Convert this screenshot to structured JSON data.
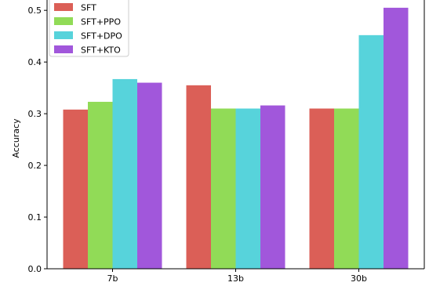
{
  "chart_data": {
    "type": "bar",
    "title": "",
    "xlabel": "",
    "ylabel": "Accuracy",
    "categories": [
      "7b",
      "13b",
      "30b"
    ],
    "series": [
      {
        "name": "SFT",
        "color": "#db5f57",
        "values": [
          0.308,
          0.355,
          0.31
        ]
      },
      {
        "name": "SFT+PPO",
        "color": "#91db57",
        "values": [
          0.323,
          0.31,
          0.31
        ]
      },
      {
        "name": "SFT+DPO",
        "color": "#57d3db",
        "values": [
          0.367,
          0.31,
          0.452
        ]
      },
      {
        "name": "SFT+KTO",
        "color": "#a157db",
        "values": [
          0.36,
          0.316,
          0.505
        ]
      }
    ],
    "ylim": [
      0,
      0.5
    ],
    "yticks": [
      "0.0",
      "0.1",
      "0.2",
      "0.3",
      "0.4",
      "0.5"
    ],
    "grid": false,
    "legend_position": "top-left"
  }
}
